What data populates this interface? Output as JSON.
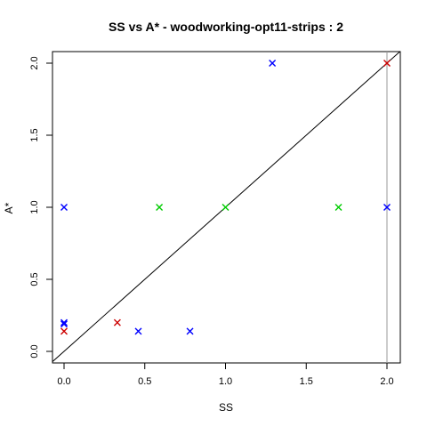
{
  "chart_data": {
    "type": "scatter",
    "title": "SS vs A* - woodworking-opt11-strips : 2",
    "xlabel": "SS",
    "ylabel": "A*",
    "xlim": [
      0,
      2
    ],
    "ylim": [
      0,
      2
    ],
    "x_ticks": [
      "0.0",
      "0.5",
      "1.0",
      "1.5",
      "2.0"
    ],
    "y_ticks": [
      "0.0",
      "0.5",
      "1.0",
      "1.5",
      "2.0"
    ],
    "reference_line": "y = x",
    "vertical_line_at_x": 2.0,
    "marker": "x",
    "series": [
      {
        "color": "#0000ff",
        "points": [
          {
            "x": 0.0,
            "y": 1.0
          },
          {
            "x": 0.0,
            "y": 0.19
          },
          {
            "x": 0.0,
            "y": 0.2
          },
          {
            "x": 0.46,
            "y": 0.14
          },
          {
            "x": 0.78,
            "y": 0.14
          },
          {
            "x": 1.29,
            "y": 2.0
          },
          {
            "x": 2.0,
            "y": 1.0
          }
        ]
      },
      {
        "color": "#00cc00",
        "points": [
          {
            "x": 0.59,
            "y": 1.0
          },
          {
            "x": 1.0,
            "y": 1.0
          },
          {
            "x": 1.7,
            "y": 1.0
          }
        ]
      },
      {
        "color": "#cc0000",
        "points": [
          {
            "x": 0.0,
            "y": 0.14
          },
          {
            "x": 0.33,
            "y": 0.2
          },
          {
            "x": 2.0,
            "y": 2.0
          }
        ]
      }
    ]
  }
}
